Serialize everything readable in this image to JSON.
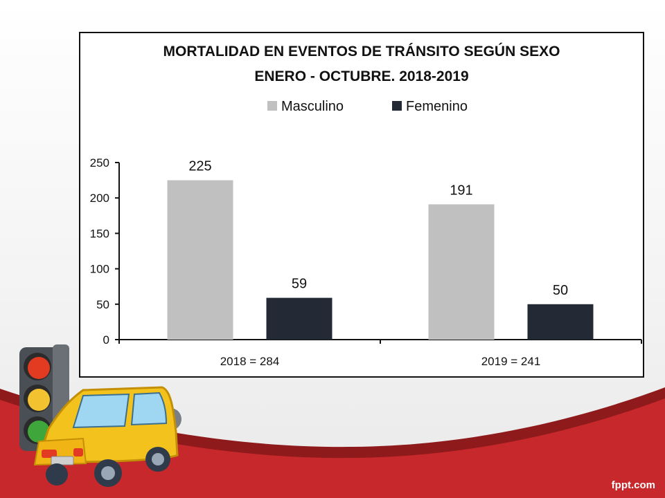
{
  "slide": {
    "brand": "fppt.com",
    "colors": {
      "wave": "#c7282b",
      "wave_shadow": "#8e1a1c"
    }
  },
  "chart_data": {
    "type": "bar",
    "title": "MORTALIDAD EN EVENTOS DE TRÁNSITO SEGÚN SEXO",
    "subtitle": "ENERO - OCTUBRE. 2018-2019",
    "categories": [
      "2018 = 284",
      "2019 = 241"
    ],
    "series": [
      {
        "name": "Masculino",
        "values": [
          225,
          191
        ],
        "color": "#c0c0c0"
      },
      {
        "name": "Femenino",
        "values": [
          59,
          50
        ],
        "color": "#232a35"
      }
    ],
    "ylim": [
      0,
      250
    ],
    "yticks": [
      0,
      50,
      100,
      150,
      200,
      250
    ],
    "xlabel": "",
    "ylabel": "",
    "legend": "top-center",
    "grid": false,
    "data_labels": true
  }
}
